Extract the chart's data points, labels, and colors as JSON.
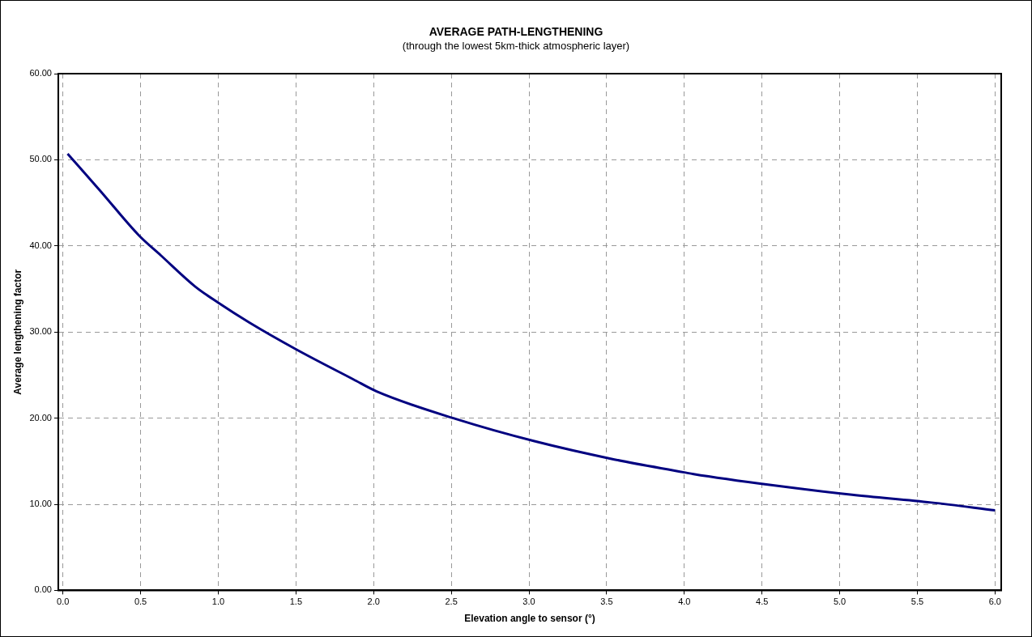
{
  "chart_data": {
    "type": "line",
    "title": "AVERAGE PATH-LENGTHENING",
    "subtitle": "(through the lowest 5km-thick atmospheric layer)",
    "xlabel": "Elevation angle to sensor (°)",
    "ylabel": "Average lengthening factor",
    "series": [
      {
        "color": "#000080",
        "x": [
          0.03,
          0.24,
          0.49,
          0.63,
          0.85,
          1.0,
          1.2,
          1.5,
          1.87,
          2.02,
          2.53,
          3.04,
          3.55,
          4.0,
          4.06,
          4.57,
          5.08,
          5.59,
          6.0
        ],
        "values": [
          50.7,
          46.4,
          41.2,
          38.9,
          35.3,
          33.4,
          31.1,
          28.0,
          24.5,
          23.1,
          19.9,
          17.3,
          15.2,
          13.7,
          13.5,
          12.2,
          11.1,
          10.2,
          9.3
        ]
      }
    ],
    "xlim": [
      -0.03,
      6.04
    ],
    "ylim": [
      0,
      60
    ],
    "xticks": [
      {
        "value": 0,
        "label": "0.0"
      },
      {
        "value": 0.5,
        "label": "0.5"
      },
      {
        "value": 1,
        "label": "1.0"
      },
      {
        "value": 1.5,
        "label": "1.5"
      },
      {
        "value": 2,
        "label": "2.0"
      },
      {
        "value": 2.5,
        "label": "2.5"
      },
      {
        "value": 3,
        "label": "3.0"
      },
      {
        "value": 3.5,
        "label": "3.5"
      },
      {
        "value": 4,
        "label": "4.0"
      },
      {
        "value": 4.5,
        "label": "4.5"
      },
      {
        "value": 5,
        "label": "5.0"
      },
      {
        "value": 5.5,
        "label": "5.5"
      },
      {
        "value": 6,
        "label": "6.0"
      }
    ],
    "yticks": [
      {
        "value": 0,
        "label": "0.00"
      },
      {
        "value": 10,
        "label": "10.00"
      },
      {
        "value": 20,
        "label": "20.00"
      },
      {
        "value": 30,
        "label": "30.00"
      },
      {
        "value": 40,
        "label": "40.00"
      },
      {
        "value": 50,
        "label": "50.00"
      },
      {
        "value": 60,
        "label": "60.00"
      }
    ],
    "grid": true,
    "legend": false,
    "marker": "none",
    "line_style": "solid"
  }
}
